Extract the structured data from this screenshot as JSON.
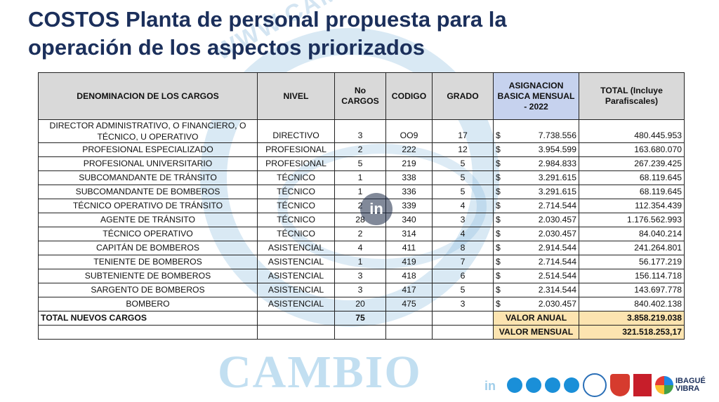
{
  "title": {
    "line1": "COSTOS Planta de personal propuesta para la",
    "line2": "operación de los aspectos priorizados"
  },
  "watermark": {
    "url": "WWW.CAMBIOIN.COM",
    "brand": "CAMBIO",
    "mark": "in",
    "color": "#78afd7"
  },
  "table": {
    "headers": {
      "denominacion": "DENOMINACION DE LOS CARGOS",
      "nivel": "NIVEL",
      "no_cargos": "No CARGOS",
      "codigo": "CODIGO",
      "grado": "GRADO",
      "asignacion": "ASIGNACION BASICA MENSUAL - 2022",
      "total": "TOTAL (Incluye Parafiscales)"
    },
    "rows": [
      {
        "cargo": "DIRECTOR ADMINISTRATIVO, O FINANCIERO, O TÉCNICO, U OPERATIVO",
        "nivel": "DIRECTIVO",
        "no": "3",
        "codigo": "OO9",
        "grado": "17",
        "currency": "$",
        "asignacion": "7.738.556",
        "total": "480.445.953"
      },
      {
        "cargo": "PROFESIONAL ESPECIALIZADO",
        "nivel": "PROFESIONAL",
        "no": "2",
        "codigo": "222",
        "grado": "12",
        "currency": "$",
        "asignacion": "3.954.599",
        "total": "163.680.070"
      },
      {
        "cargo": "PROFESIONAL UNIVERSITARIO",
        "nivel": "PROFESIONAL",
        "no": "5",
        "codigo": "219",
        "grado": "5",
        "currency": "$",
        "asignacion": "2.984.833",
        "total": "267.239.425"
      },
      {
        "cargo": "SUBCOMANDANTE DE TRÁNSITO",
        "nivel": "TÉCNICO",
        "no": "1",
        "codigo": "338",
        "grado": "5",
        "currency": "$",
        "asignacion": "3.291.615",
        "total": "68.119.645"
      },
      {
        "cargo": "SUBCOMANDANTE DE BOMBEROS",
        "nivel": "TÉCNICO",
        "no": "1",
        "codigo": "336",
        "grado": "5",
        "currency": "$",
        "asignacion": "3.291.615",
        "total": "68.119.645"
      },
      {
        "cargo": "TÉCNICO OPERATIVO DE TRÁNSITO",
        "nivel": "TÉCNICO",
        "no": "2",
        "codigo": "339",
        "grado": "4",
        "currency": "$",
        "asignacion": "2.714.544",
        "total": "112.354.439"
      },
      {
        "cargo": "AGENTE DE TRÁNSITO",
        "nivel": "TÉCNICO",
        "no": "28",
        "codigo": "340",
        "grado": "3",
        "currency": "$",
        "asignacion": "2.030.457",
        "total": "1.176.562.993"
      },
      {
        "cargo": "TÉCNICO OPERATIVO",
        "nivel": "TÉCNICO",
        "no": "2",
        "codigo": "314",
        "grado": "4",
        "currency": "$",
        "asignacion": "2.030.457",
        "total": "84.040.214"
      },
      {
        "cargo": "CAPITÁN DE BOMBEROS",
        "nivel": "ASISTENCIAL",
        "no": "4",
        "codigo": "411",
        "grado": "8",
        "currency": "$",
        "asignacion": "2.914.544",
        "total": "241.264.801"
      },
      {
        "cargo": "TENIENTE DE BOMBEROS",
        "nivel": "ASISTENCIAL",
        "no": "1",
        "codigo": "419",
        "grado": "7",
        "currency": "$",
        "asignacion": "2.714.544",
        "total": "56.177.219"
      },
      {
        "cargo": "SUBTENIENTE DE BOMBEROS",
        "nivel": "ASISTENCIAL",
        "no": "3",
        "codigo": "418",
        "grado": "6",
        "currency": "$",
        "asignacion": "2.514.544",
        "total": "156.114.718"
      },
      {
        "cargo": "SARGENTO DE BOMBEROS",
        "nivel": "ASISTENCIAL",
        "no": "3",
        "codigo": "417",
        "grado": "5",
        "currency": "$",
        "asignacion": "2.314.544",
        "total": "143.697.778"
      },
      {
        "cargo": "BOMBERO",
        "nivel": "ASISTENCIAL",
        "no": "20",
        "codigo": "475",
        "grado": "3",
        "currency": "$",
        "asignacion": "2.030.457",
        "total": "840.402.138"
      }
    ],
    "total_row": {
      "label": "TOTAL NUEVOS CARGOS",
      "no": "75",
      "valor_anual_label": "VALOR ANUAL",
      "valor_anual": "3.858.219.038",
      "valor_mensual_label": "VALOR MENSUAL",
      "valor_mensual": "321.518.253,17"
    }
  },
  "footer": {
    "brand_line1": "IBAGUÉ",
    "brand_line2": "VIBRA"
  },
  "colors": {
    "title": "#1b2f5b",
    "header_gray": "#d9d9d9",
    "header_blue": "#c6d2ee",
    "highlight": "#fce4b0"
  }
}
